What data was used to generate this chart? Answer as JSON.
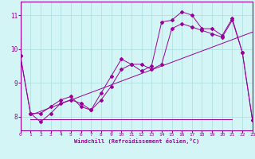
{
  "xlabel": "Windchill (Refroidissement éolien,°C)",
  "background_color": "#d4f5f5",
  "grid_color": "#aadddd",
  "line_color": "#990099",
  "xlim": [
    0,
    23
  ],
  "ylim": [
    7.6,
    11.4
  ],
  "xticks": [
    0,
    1,
    2,
    3,
    4,
    5,
    6,
    7,
    8,
    9,
    10,
    11,
    12,
    13,
    14,
    15,
    16,
    17,
    18,
    19,
    20,
    21,
    22,
    23
  ],
  "yticks": [
    8,
    9,
    10,
    11
  ],
  "temp_line": {
    "x": [
      0,
      1,
      2,
      3,
      4,
      5,
      6,
      7,
      8,
      9,
      10,
      11,
      12,
      13,
      14,
      15,
      16,
      17,
      18,
      19,
      20,
      21,
      22,
      23
    ],
    "y": [
      9.8,
      8.1,
      8.1,
      8.3,
      8.5,
      8.6,
      8.3,
      8.2,
      8.7,
      9.2,
      9.7,
      9.55,
      9.35,
      9.5,
      10.8,
      10.85,
      11.1,
      11.0,
      10.6,
      10.6,
      10.4,
      10.9,
      9.9,
      7.9
    ]
  },
  "windchill_line": {
    "x": [
      0,
      1,
      2,
      3,
      4,
      5,
      6,
      7,
      8,
      9,
      10,
      11,
      12,
      13,
      14,
      15,
      16,
      17,
      18,
      19,
      20,
      21,
      22,
      23
    ],
    "y": [
      9.8,
      8.1,
      7.85,
      8.1,
      8.4,
      8.5,
      8.4,
      8.2,
      8.5,
      8.9,
      9.4,
      9.55,
      9.55,
      9.4,
      9.55,
      10.6,
      10.75,
      10.65,
      10.55,
      10.45,
      10.35,
      10.85,
      9.9,
      7.9
    ]
  },
  "trend_line": {
    "x": [
      1,
      23
    ],
    "y": [
      8.05,
      10.5
    ]
  },
  "flat_line": {
    "x": [
      1,
      21
    ],
    "y": [
      7.92,
      7.92
    ]
  }
}
